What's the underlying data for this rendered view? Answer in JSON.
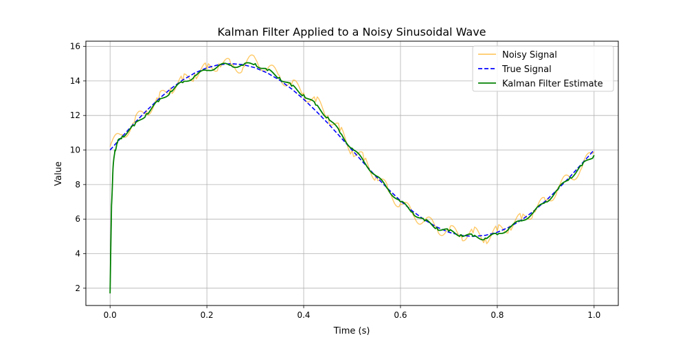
{
  "chart_data": {
    "type": "line",
    "title": "Kalman Filter Applied to a Noisy Sinusoidal Wave",
    "xlabel": "Time (s)",
    "ylabel": "Value",
    "xlim": [
      -0.05,
      1.05
    ],
    "ylim": [
      1.0,
      16.3
    ],
    "xticks": [
      0.0,
      0.2,
      0.4,
      0.6,
      0.8,
      1.0
    ],
    "xtick_labels": [
      "0.0",
      "0.2",
      "0.4",
      "0.6",
      "0.8",
      "1.0"
    ],
    "yticks": [
      2,
      4,
      6,
      8,
      10,
      12,
      14,
      16
    ],
    "ytick_labels": [
      "2",
      "4",
      "6",
      "8",
      "10",
      "12",
      "14",
      "16"
    ],
    "grid": true,
    "legend_position": "top-right",
    "x_start": 0.0,
    "x_end": 1.0,
    "series": [
      {
        "name": "Noisy Signal",
        "color": "#ffa500",
        "opacity": 0.6,
        "style": "solid",
        "x": [
          0.0,
          0.025,
          0.05,
          0.075,
          0.1,
          0.125,
          0.15,
          0.175,
          0.2,
          0.225,
          0.25,
          0.275,
          0.3,
          0.325,
          0.35,
          0.375,
          0.4,
          0.425,
          0.45,
          0.475,
          0.5,
          0.525,
          0.55,
          0.575,
          0.6,
          0.625,
          0.65,
          0.675,
          0.7,
          0.725,
          0.75,
          0.775,
          0.8,
          0.825,
          0.85,
          0.875,
          0.9,
          0.925,
          0.95,
          0.975,
          1.0
        ],
        "y": [
          10.2,
          10.9,
          11.6,
          12.3,
          12.9,
          13.6,
          14.0,
          14.4,
          14.7,
          15.0,
          14.9,
          14.8,
          15.3,
          14.7,
          14.3,
          13.8,
          13.3,
          12.8,
          12.0,
          11.1,
          10.0,
          9.4,
          8.5,
          7.6,
          6.9,
          6.3,
          5.9,
          5.5,
          5.3,
          5.1,
          5.2,
          4.9,
          5.3,
          5.6,
          6.0,
          6.5,
          7.0,
          7.8,
          8.4,
          9.0,
          9.9
        ]
      },
      {
        "name": "True Signal",
        "color": "#0000ff",
        "style": "dashed",
        "x": [
          0.0,
          0.025,
          0.05,
          0.075,
          0.1,
          0.125,
          0.15,
          0.175,
          0.2,
          0.225,
          0.25,
          0.275,
          0.3,
          0.325,
          0.35,
          0.375,
          0.4,
          0.425,
          0.45,
          0.475,
          0.5,
          0.525,
          0.55,
          0.575,
          0.6,
          0.625,
          0.65,
          0.675,
          0.7,
          0.725,
          0.75,
          0.775,
          0.8,
          0.825,
          0.85,
          0.875,
          0.9,
          0.925,
          0.95,
          0.975,
          1.0
        ],
        "y": [
          10.0,
          10.78,
          11.55,
          12.27,
          12.94,
          13.54,
          14.05,
          14.46,
          14.76,
          14.94,
          15.0,
          14.94,
          14.76,
          14.46,
          14.05,
          13.54,
          12.94,
          12.27,
          11.55,
          10.78,
          10.0,
          9.22,
          8.45,
          7.73,
          7.06,
          6.46,
          5.95,
          5.54,
          5.24,
          5.06,
          5.0,
          5.06,
          5.24,
          5.54,
          5.95,
          6.46,
          7.06,
          7.73,
          8.45,
          9.22,
          10.0
        ]
      },
      {
        "name": "Kalman Filter Estimate",
        "color": "#008000",
        "style": "solid",
        "x": [
          0.0,
          0.003,
          0.006,
          0.01,
          0.015,
          0.025,
          0.05,
          0.075,
          0.1,
          0.125,
          0.15,
          0.175,
          0.2,
          0.225,
          0.25,
          0.275,
          0.3,
          0.325,
          0.35,
          0.375,
          0.4,
          0.425,
          0.45,
          0.475,
          0.5,
          0.525,
          0.55,
          0.575,
          0.6,
          0.625,
          0.65,
          0.675,
          0.7,
          0.725,
          0.75,
          0.775,
          0.8,
          0.825,
          0.85,
          0.875,
          0.9,
          0.925,
          0.95,
          0.975,
          1.0
        ],
        "y": [
          1.7,
          6.8,
          8.9,
          10.0,
          10.4,
          10.8,
          11.4,
          12.1,
          12.8,
          13.4,
          13.9,
          14.3,
          14.6,
          14.9,
          14.9,
          14.9,
          15.0,
          14.6,
          14.2,
          13.7,
          13.2,
          12.6,
          11.9,
          11.0,
          10.1,
          9.3,
          8.5,
          7.7,
          7.0,
          6.4,
          5.9,
          5.5,
          5.3,
          5.1,
          5.0,
          4.9,
          5.1,
          5.5,
          5.9,
          6.4,
          7.0,
          7.7,
          8.4,
          9.1,
          9.7
        ]
      }
    ]
  }
}
